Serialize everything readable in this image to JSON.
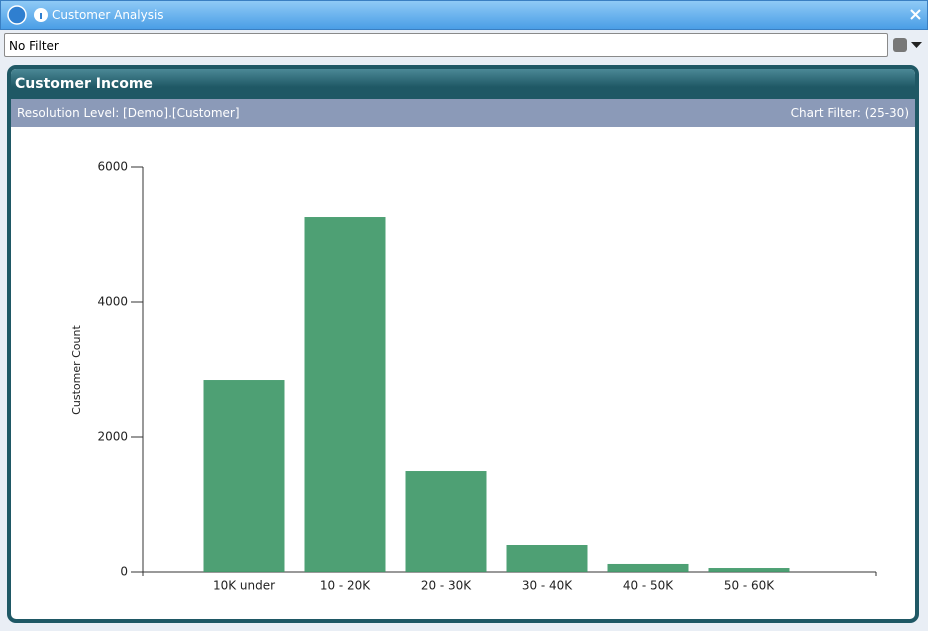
{
  "window": {
    "title": "Customer Analysis",
    "filter": "No Filter"
  },
  "panel": {
    "title": "Customer Income",
    "resolution": "Resolution Level: [Demo].[Customer]",
    "chart_filter": "Chart Filter: (25-30)"
  },
  "chart_data": {
    "type": "bar",
    "y_label": "Customer Count",
    "categories": [
      "10K under",
      "10 - 20K",
      "20 - 30K",
      "30 - 40K",
      "40 - 50K",
      "50 - 60K"
    ],
    "values": [
      2844,
      5259,
      1496,
      400,
      119,
      59
    ],
    "color": "#3f9868",
    "ylim": [
      0,
      6000
    ],
    "yticks": [
      0,
      2000,
      4000,
      6000
    ]
  }
}
